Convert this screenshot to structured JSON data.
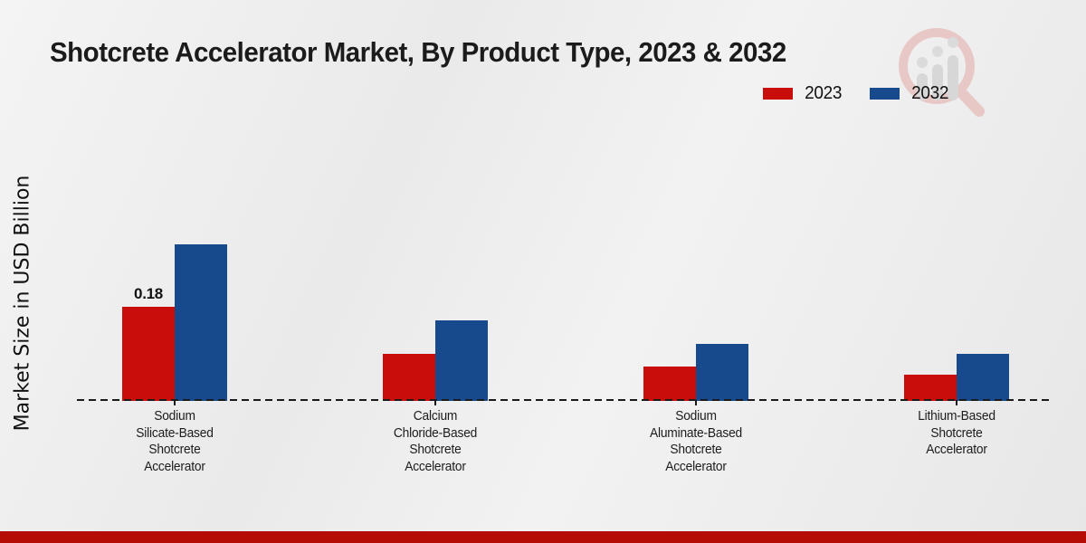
{
  "title": "Shotcrete Accelerator Market, By Product Type, 2023 & 2032",
  "y_axis_label": "Market Size in USD Billion",
  "legend": [
    {
      "label": "2023",
      "color": "#c90d0b"
    },
    {
      "label": "2032",
      "color": "#17498d"
    }
  ],
  "colors": {
    "series_2023": "#c90d0b",
    "series_2032": "#17498d",
    "footer_strip": "#b50d06",
    "axis": "#1a1a1a",
    "background": "#ededed"
  },
  "watermark": "magnifier-bar-chart-logo",
  "footer": {
    "strip_color": "#b50d06"
  },
  "chart_data": {
    "type": "bar",
    "title": "Shotcrete Accelerator Market, By Product Type, 2023 & 2032",
    "xlabel": "",
    "ylabel": "Market Size in USD Billion",
    "categories": [
      "Sodium Silicate-Based Shotcrete Accelerator",
      "Calcium Chloride-Based Shotcrete Accelerator",
      "Sodium Aluminate-Based Shotcrete Accelerator",
      "Lithium-Based Shotcrete Accelerator"
    ],
    "categories_lines": [
      [
        "Sodium",
        "Silicate-Based",
        "Shotcrete",
        "Accelerator"
      ],
      [
        "Calcium",
        "Chloride-Based",
        "Shotcrete",
        "Accelerator"
      ],
      [
        "Sodium",
        "Aluminate-Based",
        "Shotcrete",
        "Accelerator"
      ],
      [
        "Lithium-Based",
        "Shotcrete",
        "Accelerator"
      ]
    ],
    "series": [
      {
        "name": "2023",
        "color": "#c90d0b",
        "values": [
          0.18,
          0.09,
          0.065,
          0.05
        ]
      },
      {
        "name": "2032",
        "color": "#17498d",
        "values": [
          0.3,
          0.155,
          0.11,
          0.09
        ]
      }
    ],
    "bar_labels": [
      {
        "series_index": 0,
        "category_index": 0,
        "text": "0.18"
      }
    ],
    "ylim": [
      0,
      0.35
    ],
    "unit": "USD Billion",
    "grid": false,
    "y_axis_ticks_visible": false,
    "baseline_style": "dashed",
    "legend_position": "top-right"
  }
}
